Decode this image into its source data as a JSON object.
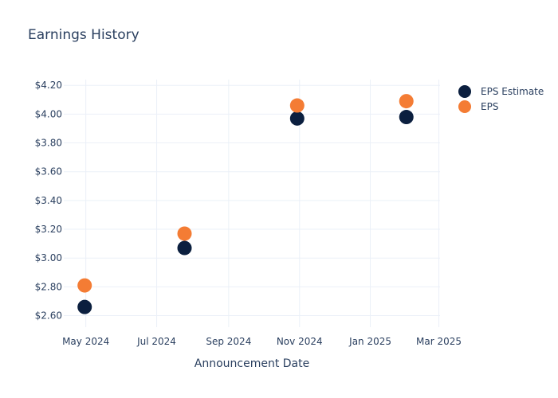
{
  "chart_data": {
    "type": "scatter",
    "title": "Earnings History",
    "xlabel": "Announcement Date",
    "ylabel": "",
    "x_ticks": [
      "2024-05-01",
      "2024-07-01",
      "2024-09-01",
      "2024-11-01",
      "2025-01-01",
      "2025-03-01"
    ],
    "x_tick_labels": [
      "May 2024",
      "Jul 2024",
      "Sep 2024",
      "Nov 2024",
      "Jan 2025",
      "Mar 2025"
    ],
    "xlim": [
      "2024-04-12",
      "2025-03-02"
    ],
    "y_ticks": [
      2.6,
      2.8,
      3.0,
      3.2,
      3.4,
      3.6,
      3.8,
      4.0,
      4.2
    ],
    "y_tick_labels": [
      "$2.60",
      "$2.80",
      "$3.00",
      "$3.20",
      "$3.40",
      "$3.60",
      "$3.80",
      "$4.00",
      "$4.20"
    ],
    "ylim": [
      2.52,
      4.24
    ],
    "grid": true,
    "legend_position": "top-right",
    "x": [
      "2024-04-30",
      "2024-07-25",
      "2024-10-30",
      "2025-02-01"
    ],
    "series": [
      {
        "name": "EPS Estimate",
        "color": "#0b1f3f",
        "values": [
          2.66,
          3.07,
          3.97,
          3.98
        ]
      },
      {
        "name": "EPS",
        "color": "#f47c34",
        "values": [
          2.81,
          3.17,
          4.06,
          4.09
        ]
      }
    ]
  }
}
